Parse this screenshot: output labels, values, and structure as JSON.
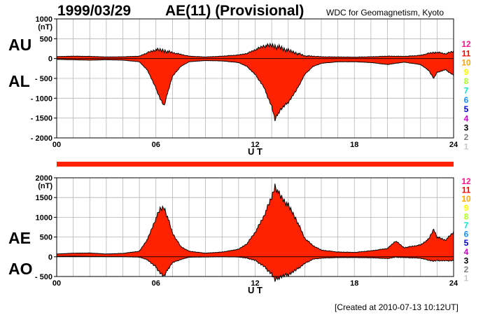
{
  "header": {
    "date": "1999/03/29",
    "title": "AE(11) (Provisional)",
    "source": "WDC for Geomagnetism, Kyoto"
  },
  "footer": {
    "created": "[Created at 2010-07-13 10:12UT]"
  },
  "level_legend": {
    "labels": [
      "12",
      "11",
      "10",
      "9",
      "8",
      "7",
      "6",
      "5",
      "4",
      "3",
      "2",
      "1"
    ],
    "colors": [
      "#ff1493",
      "#ff0000",
      "#ffa500",
      "#ffff00",
      "#adff2f",
      "#00e5cc",
      "#1e90ff",
      "#0000cd",
      "#cc00cc",
      "#000000",
      "#7f7f7f",
      "#c8c8c8"
    ]
  },
  "colors": {
    "fill": "#ff2200",
    "line": "#000000",
    "grid": "#b4b4b4"
  },
  "chart_data": [
    {
      "type": "area",
      "panel": "upper",
      "labels": {
        "top": "AU",
        "bottom": "AL",
        "unit": "(nT)",
        "xlabel": "U T"
      },
      "y_ticks": [
        "1000",
        "500",
        "0",
        "- 500",
        "- 1000",
        "- 1500",
        "- 2000"
      ],
      "ylim": [
        -2000,
        1000
      ],
      "x_ticks": [
        "00",
        "06",
        "12",
        "18",
        "24"
      ],
      "xlim": [
        0,
        24
      ],
      "grid": true,
      "series": [
        {
          "name": "AU",
          "x": [
            0,
            1,
            2,
            3,
            4,
            5,
            5.5,
            6,
            6.5,
            7,
            8,
            9,
            10,
            11,
            11.5,
            12,
            12.5,
            13,
            13.5,
            14,
            14.5,
            15,
            16,
            17,
            18,
            19,
            20,
            21,
            22,
            22.5,
            23,
            23.5,
            24
          ],
          "values": [
            50,
            60,
            55,
            40,
            45,
            60,
            150,
            220,
            200,
            150,
            60,
            40,
            60,
            90,
            130,
            220,
            310,
            330,
            280,
            200,
            140,
            70,
            45,
            40,
            35,
            45,
            60,
            55,
            80,
            130,
            160,
            120,
            180
          ]
        },
        {
          "name": "AL",
          "x": [
            0,
            1,
            2,
            3,
            4,
            5,
            5.5,
            6,
            6.25,
            6.5,
            6.75,
            7,
            7.5,
            8,
            9,
            10,
            11,
            11.5,
            12,
            12.5,
            13,
            13.2,
            13.5,
            14,
            14.5,
            15,
            15.5,
            16,
            17,
            18,
            19,
            20,
            20.5,
            21,
            22,
            22.5,
            22.8,
            23,
            23.5,
            24
          ],
          "values": [
            -20,
            -30,
            -40,
            -30,
            -40,
            -80,
            -300,
            -750,
            -1000,
            -1200,
            -800,
            -450,
            -200,
            -80,
            -50,
            -60,
            -100,
            -200,
            -400,
            -700,
            -1200,
            -1550,
            -1300,
            -1100,
            -800,
            -400,
            -200,
            -120,
            -80,
            -80,
            -100,
            -150,
            -120,
            -90,
            -150,
            -300,
            -500,
            -350,
            -280,
            -420
          ]
        }
      ]
    },
    {
      "type": "area",
      "panel": "lower",
      "labels": {
        "top": "AE",
        "bottom": "AO",
        "unit": "(nT)",
        "xlabel": "U T"
      },
      "y_ticks": [
        "2000",
        "1500",
        "1000",
        "500",
        "0",
        "- 500"
      ],
      "ylim": [
        -500,
        2000
      ],
      "x_ticks": [
        "00",
        "06",
        "12",
        "18",
        "24"
      ],
      "xlim": [
        0,
        24
      ],
      "grid": true,
      "series": [
        {
          "name": "AE",
          "x": [
            0,
            1,
            2,
            3,
            4,
            5,
            5.5,
            6,
            6.25,
            6.5,
            6.75,
            7,
            7.5,
            8,
            9,
            10,
            11,
            11.5,
            12,
            12.5,
            13,
            13.2,
            13.5,
            14,
            14.5,
            15,
            15.5,
            16,
            17,
            18,
            19,
            20,
            20.5,
            21,
            22,
            22.5,
            22.8,
            23,
            23.5,
            24
          ],
          "values": [
            70,
            90,
            95,
            70,
            85,
            140,
            450,
            970,
            1200,
            1250,
            950,
            600,
            260,
            140,
            90,
            120,
            190,
            330,
            620,
            1000,
            1500,
            1800,
            1550,
            1300,
            940,
            470,
            280,
            170,
            120,
            110,
            150,
            210,
            400,
            230,
            300,
            450,
            700,
            500,
            420,
            620
          ]
        },
        {
          "name": "AO",
          "x": [
            0,
            1,
            2,
            3,
            4,
            5,
            5.5,
            6,
            6.25,
            6.5,
            6.75,
            7,
            7.5,
            8,
            9,
            10,
            11,
            11.5,
            12,
            12.5,
            13,
            13.2,
            13.5,
            14,
            14.5,
            15,
            15.5,
            16,
            17,
            18,
            19,
            20,
            20.5,
            21,
            22,
            22.5,
            22.8,
            23,
            23.5,
            24
          ],
          "values": [
            10,
            15,
            8,
            5,
            3,
            -10,
            -80,
            -260,
            -400,
            -500,
            -300,
            -150,
            -70,
            -10,
            -5,
            0,
            -5,
            -35,
            -90,
            -230,
            -430,
            -600,
            -510,
            -450,
            -330,
            -170,
            -60,
            -35,
            -20,
            -20,
            -25,
            -45,
            -10,
            -20,
            -35,
            -85,
            -110,
            -95,
            -100,
            -95
          ]
        }
      ]
    }
  ]
}
